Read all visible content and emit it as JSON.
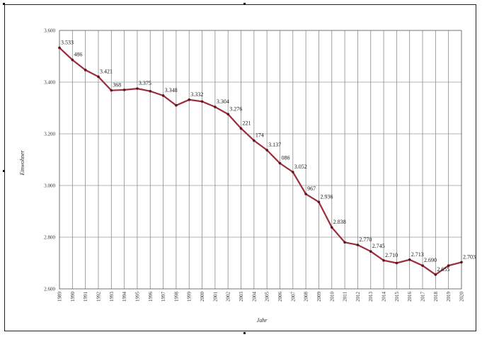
{
  "chart_data": {
    "type": "line",
    "title": "",
    "xlabel": "Jahr",
    "ylabel": "Einwohner",
    "ylim": [
      2600,
      3600
    ],
    "yticks": [
      "2.600",
      "2.800",
      "3.000",
      "3.200",
      "3.400",
      "3.600"
    ],
    "ytick_values": [
      2600,
      2800,
      3000,
      3200,
      3400,
      3600
    ],
    "grid": true,
    "line_color": "#9b2c3a",
    "x": [
      "1989",
      "1990",
      "1991",
      "1992",
      "1993",
      "1994",
      "1995",
      "1996",
      "1997",
      "1998",
      "1999",
      "2000",
      "2001",
      "2002",
      "2003",
      "2004",
      "2005",
      "2006",
      "2007",
      "2008",
      "2009",
      "2010",
      "2011",
      "2012",
      "2013",
      "2014",
      "2015",
      "2016",
      "2017",
      "2018",
      "2019",
      "2020"
    ],
    "series": [
      {
        "values": [
          3533,
          3486,
          3447,
          3421,
          3368,
          3370,
          3375,
          3365,
          3348,
          3310,
          3332,
          3325,
          3304,
          3276,
          3221,
          3174,
          3137,
          3086,
          3052,
          2967,
          2936,
          2838,
          2780,
          2770,
          2745,
          2710,
          2700,
          2713,
          2690,
          2655,
          2690,
          2703
        ],
        "labels": [
          "3.533",
          "486",
          "",
          "3.421",
          "368",
          "",
          "3.375",
          "",
          "3.348",
          "",
          "3.332",
          "",
          "3.304",
          "3.276",
          "221",
          "174",
          "3.137",
          "086",
          "3.052",
          "967",
          "2.936",
          "2.838",
          "",
          "2.770",
          "2.745",
          "2.710",
          "",
          "2.713",
          "2.690",
          "2.655",
          "",
          "2.703"
        ]
      }
    ]
  },
  "marks": {
    "top_left": "corner",
    "top_mid": "corner",
    "left_mid": "corner",
    "bottom_mid": "corner"
  }
}
